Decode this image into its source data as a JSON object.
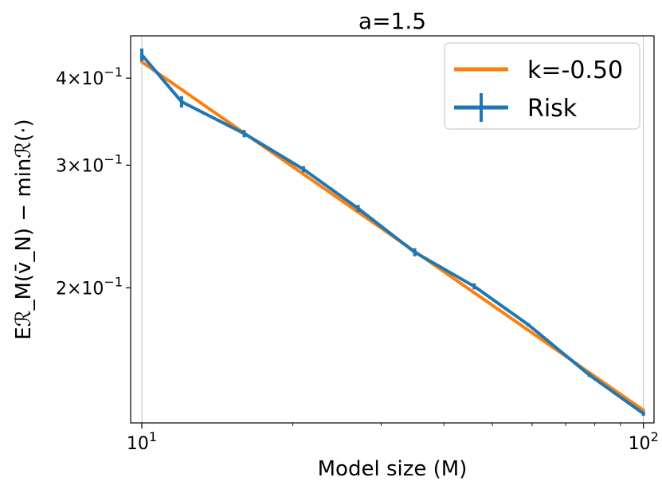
{
  "chart_data": {
    "type": "line",
    "title": "a=1.5",
    "xlabel": "Model size (M)",
    "ylabel": "Eℛ_M(v̄_N) − minℛ(·)",
    "xscale": "log",
    "yscale": "log",
    "xlim": [
      9.5,
      105
    ],
    "ylim": [
      0.128,
      0.46
    ],
    "grid": "x-major",
    "legend_position": "top-right",
    "x_ticks": [
      {
        "value": 10,
        "base": "10",
        "exp": "1"
      },
      {
        "value": 100,
        "base": "10",
        "exp": "2"
      }
    ],
    "y_ticks": [
      {
        "value": 0.4,
        "coef": "4",
        "exp": "−1"
      },
      {
        "value": 0.3,
        "coef": "3",
        "exp": "−1"
      },
      {
        "value": 0.2,
        "coef": "2",
        "exp": "−1"
      }
    ],
    "series": [
      {
        "name": "k=-0.50",
        "color": "#ff7f0e",
        "style": "line",
        "x": [
          10,
          100
        ],
        "y": [
          0.422,
          0.1335
        ]
      },
      {
        "name": "Risk",
        "color": "#1f77b4",
        "style": "line-errorbar",
        "x": [
          10,
          12,
          16,
          21,
          27,
          35,
          46,
          59,
          78,
          100
        ],
        "y": [
          0.432,
          0.37,
          0.333,
          0.296,
          0.26,
          0.225,
          0.201,
          0.177,
          0.15,
          0.132
        ],
        "yerr": [
          0.009,
          0.007,
          0.004,
          0.003,
          0.003,
          0.003,
          0.002,
          0.001,
          0.001,
          0.001
        ]
      }
    ]
  }
}
